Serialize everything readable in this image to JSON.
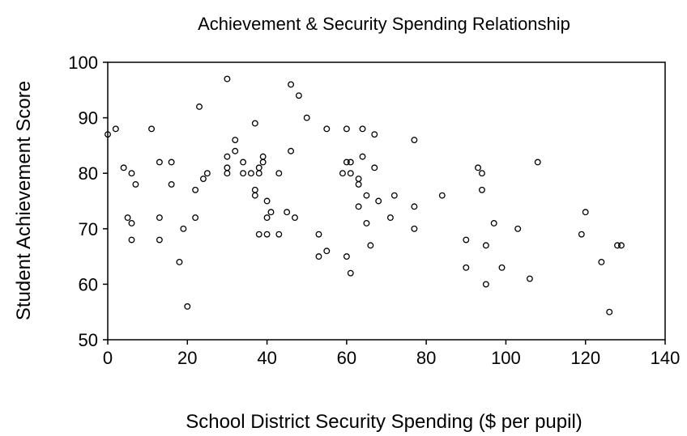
{
  "chart_data": {
    "type": "scatter",
    "title": "Achievement & Security Spending Relationship",
    "xlabel": "School District Security Spending ($ per pupil)",
    "ylabel": "Student Achievement Score",
    "xlim": [
      0,
      140
    ],
    "ylim": [
      50,
      100
    ],
    "xticks": [
      0,
      20,
      40,
      60,
      80,
      100,
      120,
      140
    ],
    "yticks": [
      50,
      60,
      70,
      80,
      90,
      100
    ],
    "grid": false,
    "marker": "open-circle",
    "marker_color": "#000000",
    "points": [
      [
        0,
        87
      ],
      [
        2,
        88
      ],
      [
        4,
        81
      ],
      [
        5,
        72
      ],
      [
        6,
        71
      ],
      [
        6,
        68
      ],
      [
        6,
        80
      ],
      [
        7,
        78
      ],
      [
        11,
        88
      ],
      [
        13,
        82
      ],
      [
        13,
        72
      ],
      [
        13,
        68
      ],
      [
        16,
        82
      ],
      [
        16,
        78
      ],
      [
        18,
        64
      ],
      [
        19,
        70
      ],
      [
        20,
        56
      ],
      [
        22,
        77
      ],
      [
        22,
        72
      ],
      [
        23,
        92
      ],
      [
        24,
        79
      ],
      [
        25,
        80
      ],
      [
        30,
        97
      ],
      [
        30,
        83
      ],
      [
        30,
        81
      ],
      [
        30,
        80
      ],
      [
        32,
        86
      ],
      [
        32,
        84
      ],
      [
        34,
        82
      ],
      [
        34,
        80
      ],
      [
        36,
        80
      ],
      [
        37,
        89
      ],
      [
        37,
        77
      ],
      [
        37,
        76
      ],
      [
        38,
        81
      ],
      [
        38,
        80
      ],
      [
        38,
        69
      ],
      [
        39,
        83
      ],
      [
        39,
        82
      ],
      [
        40,
        75
      ],
      [
        40,
        72
      ],
      [
        40,
        69
      ],
      [
        41,
        73
      ],
      [
        43,
        80
      ],
      [
        43,
        69
      ],
      [
        45,
        73
      ],
      [
        46,
        96
      ],
      [
        46,
        84
      ],
      [
        47,
        72
      ],
      [
        48,
        94
      ],
      [
        50,
        90
      ],
      [
        53,
        69
      ],
      [
        53,
        65
      ],
      [
        55,
        88
      ],
      [
        55,
        66
      ],
      [
        59,
        80
      ],
      [
        60,
        88
      ],
      [
        60,
        82
      ],
      [
        61,
        82
      ],
      [
        61,
        80
      ],
      [
        60,
        65
      ],
      [
        61,
        62
      ],
      [
        63,
        79
      ],
      [
        63,
        78
      ],
      [
        63,
        74
      ],
      [
        64,
        88
      ],
      [
        64,
        83
      ],
      [
        65,
        76
      ],
      [
        65,
        71
      ],
      [
        66,
        67
      ],
      [
        67,
        87
      ],
      [
        67,
        81
      ],
      [
        68,
        75
      ],
      [
        71,
        72
      ],
      [
        72,
        76
      ],
      [
        77,
        86
      ],
      [
        77,
        74
      ],
      [
        77,
        70
      ],
      [
        84,
        76
      ],
      [
        90,
        68
      ],
      [
        90,
        63
      ],
      [
        93,
        81
      ],
      [
        94,
        80
      ],
      [
        94,
        77
      ],
      [
        95,
        67
      ],
      [
        95,
        60
      ],
      [
        97,
        71
      ],
      [
        99,
        63
      ],
      [
        103,
        70
      ],
      [
        106,
        61
      ],
      [
        108,
        82
      ],
      [
        119,
        69
      ],
      [
        120,
        73
      ],
      [
        124,
        64
      ],
      [
        126,
        55
      ],
      [
        128,
        67
      ],
      [
        129,
        67
      ]
    ]
  }
}
